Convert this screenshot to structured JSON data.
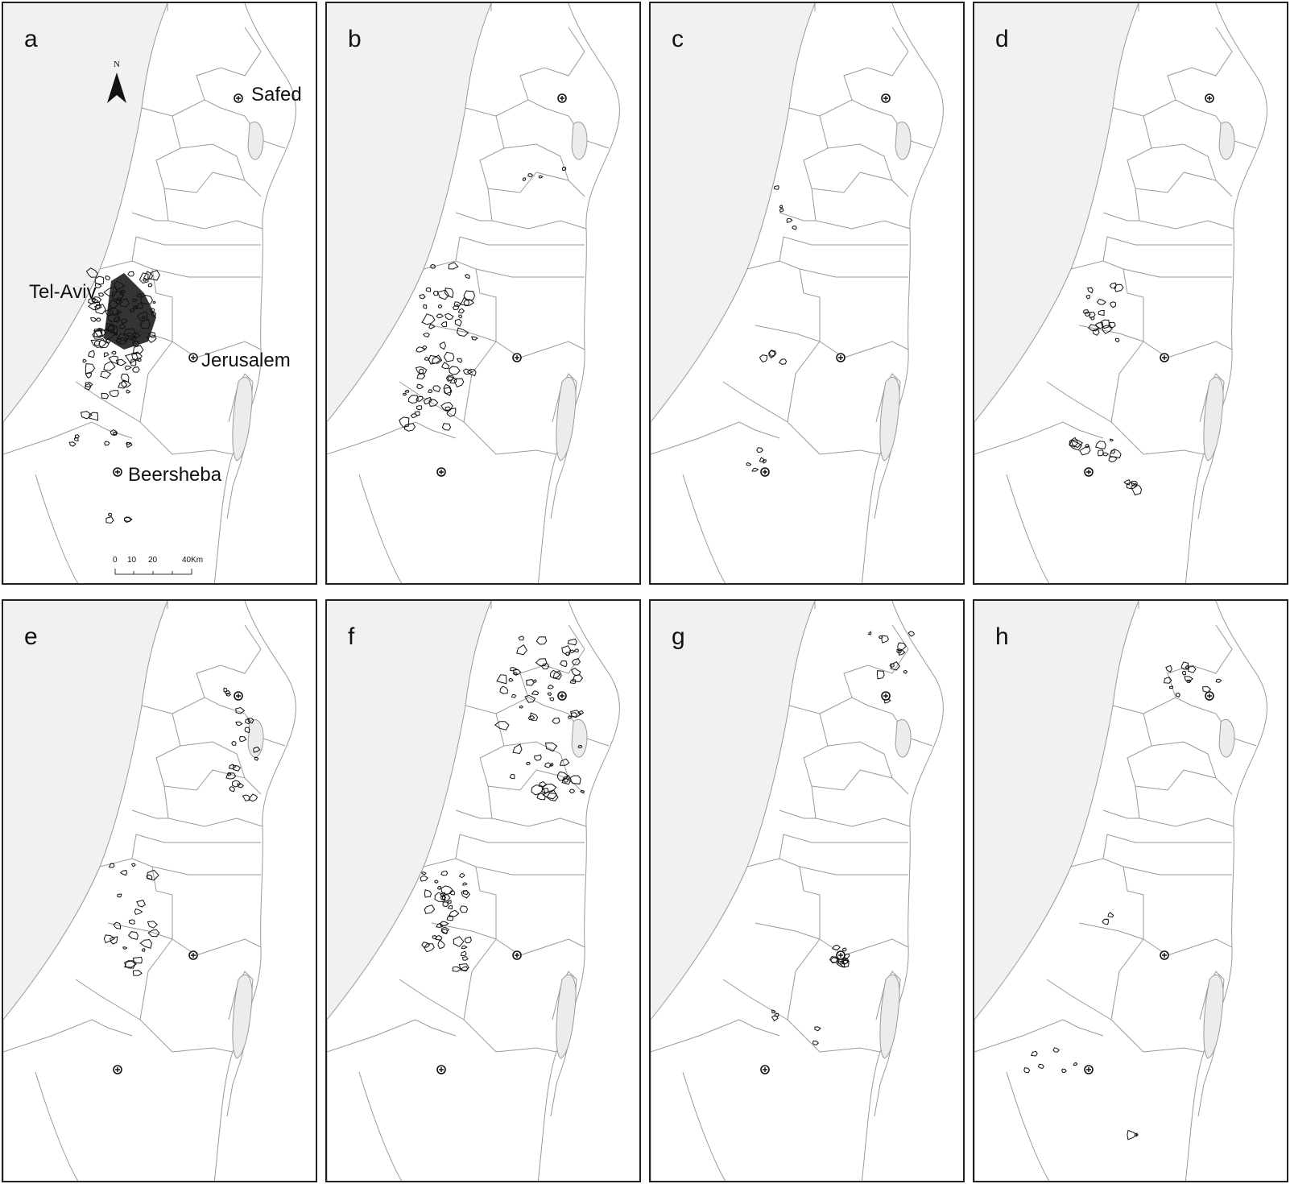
{
  "colors": {
    "sea": "#f1f1f1",
    "boundary": "#9a9a9a",
    "cluster": "#111111",
    "lake": "#ececec",
    "frame": "#222222"
  },
  "panels": [
    {
      "letter": "a",
      "clusters": "tel-aviv-dense"
    },
    {
      "letter": "b",
      "clusters": "coastal-plain"
    },
    {
      "letter": "c",
      "clusters": "sparse-scattered"
    },
    {
      "letter": "d",
      "clusters": "center-south"
    },
    {
      "letter": "e",
      "clusters": "center-galilee"
    },
    {
      "letter": "f",
      "clusters": "galilee-coastal"
    },
    {
      "letter": "g",
      "clusters": "jerusalem-north"
    },
    {
      "letter": "h",
      "clusters": "safed-negev"
    }
  ],
  "cities": {
    "safed": "Safed",
    "tel_aviv": "Tel-Aviv",
    "jerusalem": "Jerusalem",
    "beersheba": "Beersheba"
  },
  "north_arrow": {
    "label": "N"
  },
  "scale_bar": {
    "ticks": [
      "0",
      "10",
      "20",
      "40Km"
    ]
  }
}
